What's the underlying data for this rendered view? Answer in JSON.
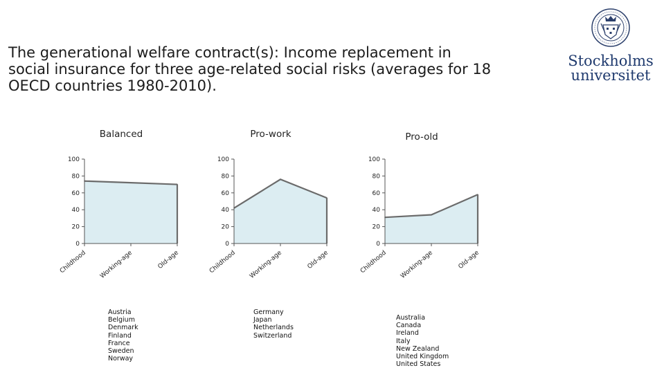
{
  "title": {
    "line1": "The generational welfare contract(s): Income replacement in",
    "line2": "social insurance for three age-related social risks (averages for 18",
    "line3": "OECD countries 1980-2010)."
  },
  "logo": {
    "line1": "Stockholms",
    "line2": "universitet",
    "icon": "university-seal-icon"
  },
  "colors": {
    "area_fill": "#dcedf2",
    "line": "#6b6b6b",
    "axis": "#555555"
  },
  "chart_data": [
    {
      "type": "area",
      "title": "Balanced",
      "categories": [
        "Childhood",
        "Working-age",
        "Old-age"
      ],
      "values": [
        74,
        72,
        70
      ],
      "ylim": [
        0,
        100
      ],
      "yticks": [
        "100",
        "80",
        "60",
        "40",
        "20",
        "0"
      ],
      "grid": false,
      "countries": [
        "Austria",
        "Belgium",
        "Denmark",
        "Finland",
        "France",
        "Sweden",
        "Norway"
      ]
    },
    {
      "type": "area",
      "title": "Pro-work",
      "categories": [
        "Childhood",
        "Working-age",
        "Old-age"
      ],
      "values": [
        42,
        76,
        54
      ],
      "ylim": [
        0,
        100
      ],
      "yticks": [
        "100",
        "80",
        "60",
        "40",
        "20",
        "0"
      ],
      "grid": false,
      "countries": [
        "Germany",
        "Japan",
        "Netherlands",
        "Switzerland"
      ]
    },
    {
      "type": "area",
      "title": "Pro-old",
      "categories": [
        "Childhood",
        "Working-age",
        "Old-age"
      ],
      "values": [
        31,
        34,
        58
      ],
      "ylim": [
        0,
        100
      ],
      "yticks": [
        "100",
        "80",
        "60",
        "40",
        "20",
        "0"
      ],
      "grid": false,
      "countries": [
        "Australia",
        "Canada",
        "Ireland",
        "Italy",
        "New Zealand",
        "United Kingdom",
        "United States"
      ]
    }
  ]
}
